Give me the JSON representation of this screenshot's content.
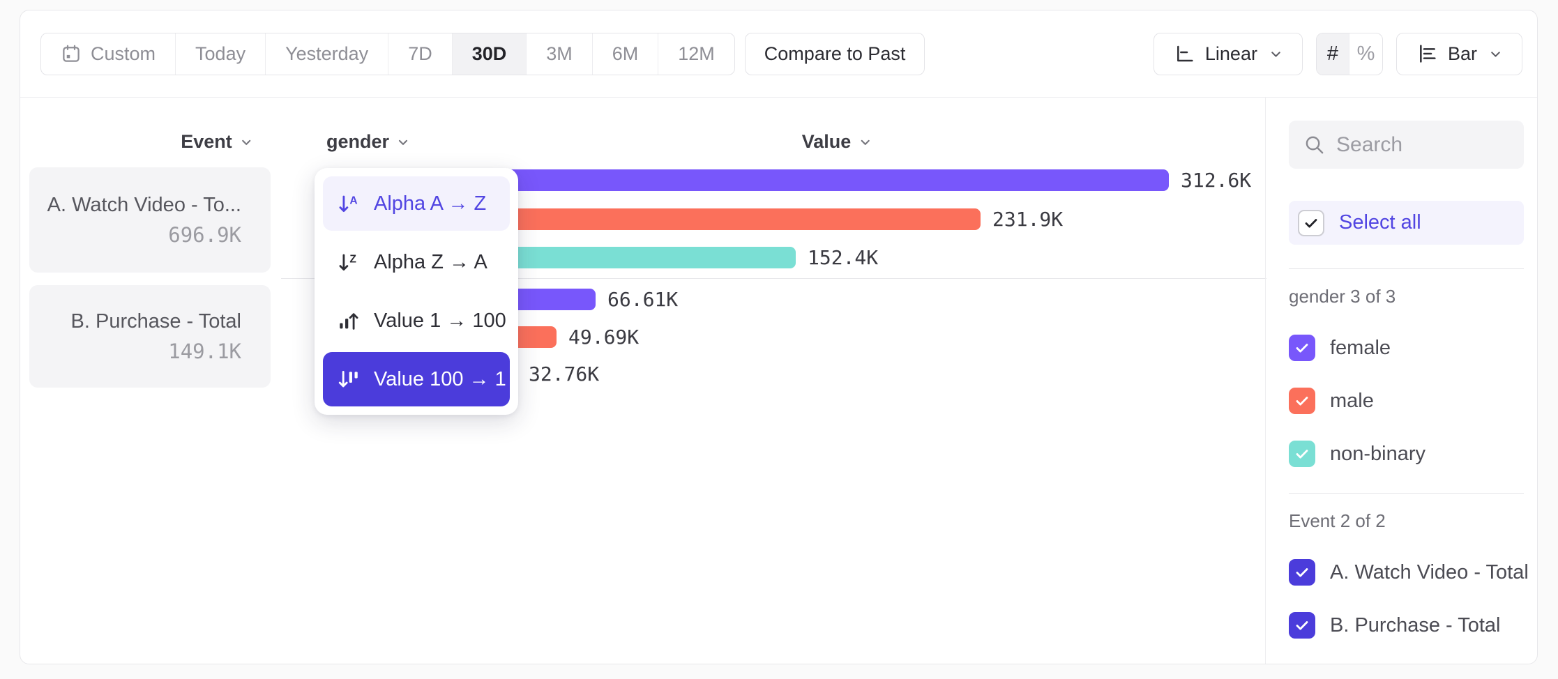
{
  "toolbar": {
    "date_ranges": [
      {
        "label": "Custom",
        "icon": "calendar",
        "active": false
      },
      {
        "label": "Today",
        "active": false
      },
      {
        "label": "Yesterday",
        "active": false
      },
      {
        "label": "7D",
        "active": false
      },
      {
        "label": "30D",
        "active": true
      },
      {
        "label": "3M",
        "active": false
      },
      {
        "label": "6M",
        "active": false
      },
      {
        "label": "12M",
        "active": false
      }
    ],
    "compare_label": "Compare to Past",
    "scale_label": "Linear",
    "number_format": "#",
    "percent_format": "%",
    "chart_type_label": "Bar"
  },
  "headers": {
    "event": "Event",
    "breakdown": "gender",
    "value": "Value"
  },
  "events": [
    {
      "name": "A. Watch Video - To...",
      "total": "696.9K"
    },
    {
      "name": "B. Purchase - Total",
      "total": "149.1K"
    }
  ],
  "sort_menu": {
    "items": [
      {
        "label": "Alpha A → Z",
        "icon": "alpha-asc",
        "state": "hover"
      },
      {
        "label": "Alpha Z → A",
        "icon": "alpha-desc",
        "state": "default"
      },
      {
        "label": "Value 1 → 100",
        "icon": "value-asc",
        "state": "default"
      },
      {
        "label": "Value 100 → 1",
        "icon": "value-desc",
        "state": "selected"
      }
    ]
  },
  "chart_data": {
    "type": "bar",
    "orientation": "horizontal",
    "category_axis_label": "Event",
    "breakdown_label": "gender",
    "value_axis_label": "Value",
    "max_value": 312600,
    "groups": [
      {
        "event": "A. Watch Video - Total",
        "total": "696.9K",
        "bars": [
          {
            "segment": "female",
            "value": 312600,
            "label": "312.6K",
            "color": "#7857FB"
          },
          {
            "segment": "male",
            "value": 231900,
            "label": "231.9K",
            "color": "#FB705B"
          },
          {
            "segment": "non-binary",
            "value": 152400,
            "label": "152.4K",
            "color": "#7ADFD4"
          }
        ]
      },
      {
        "event": "B. Purchase - Total",
        "total": "149.1K",
        "bars": [
          {
            "segment": "female",
            "value": 66610,
            "label": "66.61K",
            "color": "#7857FB"
          },
          {
            "segment": "male",
            "value": 49690,
            "label": "49.69K",
            "color": "#FB705B"
          },
          {
            "segment": "non-binary",
            "value": 32760,
            "label": "32.76K",
            "color": "#7ADFD4"
          }
        ]
      }
    ]
  },
  "sidebar": {
    "search_placeholder": "Search",
    "select_all_label": "Select all",
    "groups": [
      {
        "title": "gender 3 of 3",
        "items": [
          {
            "label": "female",
            "color": "#7857FB",
            "checked": true
          },
          {
            "label": "male",
            "color": "#FB705B",
            "checked": true
          },
          {
            "label": "non-binary",
            "color": "#7ADFD4",
            "checked": true
          }
        ]
      },
      {
        "title": "Event 2 of 2",
        "items": [
          {
            "label": "A. Watch Video - Total",
            "color": "#4B3CDB",
            "checked": true
          },
          {
            "label": "B. Purchase - Total",
            "color": "#4B3CDB",
            "checked": true
          }
        ]
      }
    ]
  },
  "colors": {
    "female": "#7857FB",
    "male": "#FB705B",
    "non_binary": "#7ADFD4",
    "accent": "#4B3CDB",
    "accent_text": "#5145E2"
  }
}
